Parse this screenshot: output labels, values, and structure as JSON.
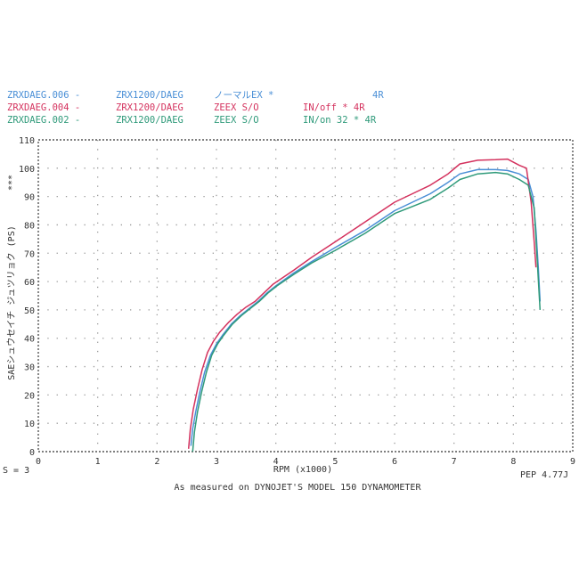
{
  "chart_data": {
    "type": "line",
    "title": "",
    "xlabel": "RPM (x1000)",
    "ylabel": "SAEシュウセイチ ジュツリョク (PS)",
    "ylabel_marks": "***",
    "xlim": [
      0,
      9
    ],
    "ylim": [
      0,
      110
    ],
    "x_ticks": [
      "0",
      "1",
      "2",
      "3",
      "4",
      "5",
      "6",
      "7",
      "8",
      "9"
    ],
    "y_ticks": [
      "0",
      "10",
      "20",
      "30",
      "40",
      "50",
      "60",
      "70",
      "80",
      "90",
      "100",
      "110"
    ],
    "grid": "dotted",
    "legend_position": "top-left",
    "legend": [
      {
        "run": "ZRXDAEG.006 -",
        "model": "ZRX1200/DAEG",
        "spec": "ノーマルEX  *",
        "note": "4R",
        "color": "#4a8fd6"
      },
      {
        "run": "ZRXDAEG.004 -",
        "model": "ZRX1200/DAEG",
        "spec": "ZEEX S/O",
        "note": "IN/off * 4R",
        "color": "#d4325e"
      },
      {
        "run": "ZRXDAEG.002 -",
        "model": "ZRX1200/DAEG",
        "spec": "ZEEX S/O",
        "note": "IN/on 32 *  4R",
        "color": "#2f9a7a"
      }
    ],
    "series": [
      {
        "name": "ZRXDAEG.006",
        "color": "#4a8fd6",
        "x": [
          2.57,
          2.6,
          2.65,
          2.72,
          2.8,
          2.9,
          3.0,
          3.1,
          3.25,
          3.4,
          3.55,
          3.7,
          3.85,
          4.0,
          4.3,
          4.6,
          5.0,
          5.5,
          6.0,
          6.3,
          6.6,
          6.9,
          7.1,
          7.4,
          7.7,
          7.9,
          8.1,
          8.25,
          8.33,
          8.38,
          8.42,
          8.45
        ],
        "y": [
          2,
          8,
          14,
          21,
          28,
          34,
          38,
          41,
          45,
          48,
          50.5,
          53,
          56,
          58.5,
          63,
          67,
          72,
          78,
          85,
          88,
          91,
          95,
          98,
          99.5,
          99.5,
          99.2,
          98,
          96,
          90,
          78,
          65,
          53
        ]
      },
      {
        "name": "ZRXDAEG.004",
        "color": "#d4325e",
        "x": [
          2.53,
          2.56,
          2.61,
          2.68,
          2.76,
          2.85,
          2.95,
          3.05,
          3.2,
          3.35,
          3.5,
          3.65,
          3.8,
          3.95,
          4.3,
          4.6,
          5.0,
          5.5,
          6.0,
          6.3,
          6.6,
          6.9,
          7.1,
          7.4,
          7.7,
          7.9,
          8.1,
          8.22,
          8.3,
          8.35,
          8.38
        ],
        "y": [
          1,
          8,
          15,
          22,
          29,
          35,
          39,
          42,
          45.5,
          48.5,
          51,
          53,
          56,
          59,
          64,
          68.5,
          74,
          81,
          88,
          91,
          94,
          98,
          101.5,
          102.8,
          103,
          103.2,
          101,
          100,
          88,
          74,
          65
        ]
      },
      {
        "name": "ZRXDAEG.002",
        "color": "#2f9a7a",
        "x": [
          2.6,
          2.63,
          2.68,
          2.75,
          2.83,
          2.92,
          3.02,
          3.12,
          3.27,
          3.42,
          3.57,
          3.72,
          3.87,
          4.02,
          4.3,
          4.6,
          5.0,
          5.5,
          6.0,
          6.3,
          6.6,
          6.9,
          7.1,
          7.4,
          7.7,
          7.9,
          8.1,
          8.25,
          8.35,
          8.4,
          8.45
        ],
        "y": [
          0,
          7,
          14,
          21,
          28,
          34,
          38,
          41,
          45,
          48,
          50.5,
          53,
          56,
          58.5,
          62.5,
          66.5,
          71,
          77,
          84,
          86.5,
          89,
          93,
          96,
          98,
          98.5,
          98,
          96,
          94,
          86,
          68,
          50
        ]
      }
    ]
  },
  "footer": {
    "left_note": "S = 3",
    "caption": "As measured on DYNOJET'S MODEL 150 DYNAMOMETER",
    "right_note": "PEP 4.77J"
  }
}
